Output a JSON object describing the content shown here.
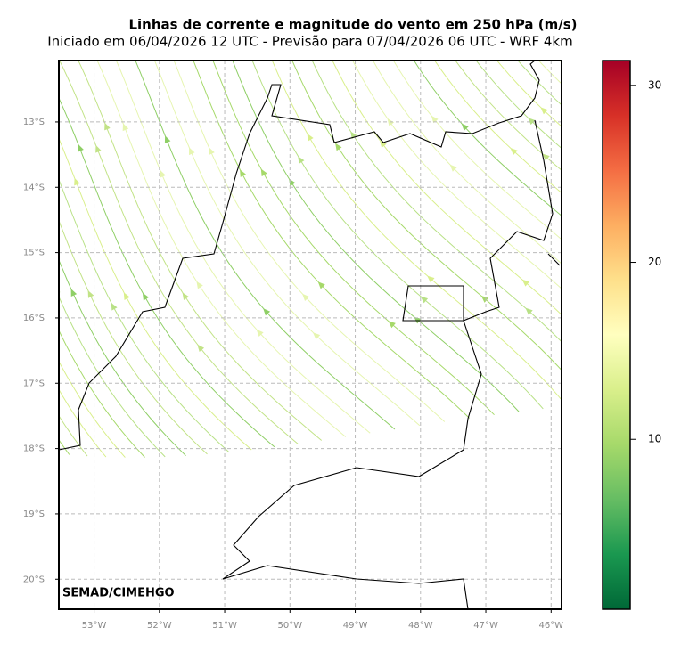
{
  "title": "Linhas de corrente e magnitude do vento em 250 hPa (m/s)",
  "subtitle": "Iniciado em 06/04/2026 12 UTC - Previsão para 07/04/2026 06 UTC - WRF 4km",
  "credit": "SEMAD/CIMEHGO",
  "map": {
    "xlim": [
      -53.54,
      -45.84
    ],
    "ylim": [
      -20.46,
      -12.06
    ],
    "xticks": [
      {
        "value": -53,
        "label": "53°W"
      },
      {
        "value": -52,
        "label": "52°W"
      },
      {
        "value": -51,
        "label": "51°W"
      },
      {
        "value": -50,
        "label": "50°W"
      },
      {
        "value": -49,
        "label": "49°W"
      },
      {
        "value": -48,
        "label": "48°W"
      },
      {
        "value": -47,
        "label": "47°W"
      },
      {
        "value": -46,
        "label": "46°W"
      }
    ],
    "yticks": [
      {
        "value": -13,
        "label": "13°S"
      },
      {
        "value": -14,
        "label": "14°S"
      },
      {
        "value": -15,
        "label": "15°S"
      },
      {
        "value": -16,
        "label": "16°S"
      },
      {
        "value": -17,
        "label": "17°S"
      },
      {
        "value": -18,
        "label": "18°S"
      },
      {
        "value": -19,
        "label": "19°S"
      },
      {
        "value": -20,
        "label": "20°S"
      }
    ],
    "grid": true
  },
  "colorbar": {
    "lim": [
      0.4,
      31.4
    ],
    "ticks": [
      10,
      20,
      30
    ]
  }
}
